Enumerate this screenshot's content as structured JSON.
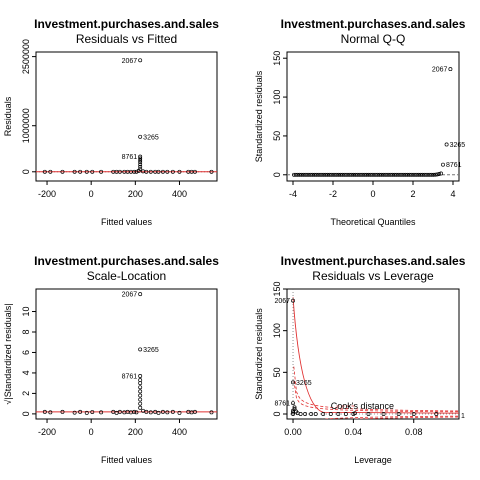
{
  "chart_data": [
    {
      "type": "scatter",
      "title": "Investment.purchases.and.sales",
      "subtitle": "Residuals vs Fitted",
      "xlabel": "Fitted values",
      "ylabel": "Residuals",
      "xlim": [
        -250,
        570
      ],
      "ylim": [
        -200000,
        2600000
      ],
      "xticks": [
        -200,
        0,
        200,
        400
      ],
      "yticks": [
        0,
        1000000,
        2500000
      ],
      "ytick_labels": [
        "0",
        "1000000",
        "2500000"
      ],
      "points": [
        {
          "x": -210,
          "y": 0
        },
        {
          "x": -185,
          "y": 0
        },
        {
          "x": -130,
          "y": 0
        },
        {
          "x": -75,
          "y": 0
        },
        {
          "x": -50,
          "y": 0
        },
        {
          "x": -20,
          "y": 0
        },
        {
          "x": 5,
          "y": 0
        },
        {
          "x": 45,
          "y": 0
        },
        {
          "x": 100,
          "y": 0
        },
        {
          "x": 115,
          "y": 0
        },
        {
          "x": 130,
          "y": 0
        },
        {
          "x": 150,
          "y": 0
        },
        {
          "x": 165,
          "y": 0
        },
        {
          "x": 180,
          "y": 0
        },
        {
          "x": 195,
          "y": 0
        },
        {
          "x": 205,
          "y": 0
        },
        {
          "x": 215,
          "y": 20000
        },
        {
          "x": 222,
          "y": 60000
        },
        {
          "x": 222,
          "y": 110000
        },
        {
          "x": 222,
          "y": 160000
        },
        {
          "x": 222,
          "y": 210000
        },
        {
          "x": 222,
          "y": 250000
        },
        {
          "x": 222,
          "y": 290000
        },
        {
          "x": 235,
          "y": 10000
        },
        {
          "x": 250,
          "y": 0
        },
        {
          "x": 270,
          "y": 0
        },
        {
          "x": 290,
          "y": 0
        },
        {
          "x": 305,
          "y": 0
        },
        {
          "x": 325,
          "y": 0
        },
        {
          "x": 345,
          "y": 0
        },
        {
          "x": 370,
          "y": 0
        },
        {
          "x": 400,
          "y": 0
        },
        {
          "x": 440,
          "y": 0
        },
        {
          "x": 455,
          "y": 0
        },
        {
          "x": 470,
          "y": 0
        },
        {
          "x": 545,
          "y": 0
        },
        {
          "x": 222,
          "y": 2420000
        },
        {
          "x": 222,
          "y": 760000
        },
        {
          "x": 222,
          "y": 330000
        }
      ],
      "labeled_points": [
        {
          "x": 222,
          "y": 2420000,
          "label": "2067",
          "side": "left"
        },
        {
          "x": 222,
          "y": 760000,
          "label": "3265",
          "side": "right"
        },
        {
          "x": 222,
          "y": 330000,
          "label": "8761",
          "side": "left"
        }
      ],
      "reference_line": {
        "y": 0,
        "style": "dotted"
      },
      "smooth_line": [
        {
          "x": -250,
          "y": 0
        },
        {
          "x": 570,
          "y": 0
        }
      ]
    },
    {
      "type": "scatter",
      "title": "Investment.purchases.and.sales",
      "subtitle": "Normal Q-Q",
      "xlabel": "Theoretical Quantiles",
      "ylabel": "Standardized residuals",
      "xlim": [
        -4.3,
        4.3
      ],
      "ylim": [
        -8,
        158
      ],
      "xticks": [
        -4,
        -2,
        0,
        2,
        4
      ],
      "yticks": [
        0,
        50,
        100,
        150
      ],
      "ytick_labels": [
        "0",
        "50",
        "100",
        "150"
      ],
      "qq_line": [
        {
          "x": -4.3,
          "y": 0
        },
        {
          "x": 4.3,
          "y": 0
        }
      ],
      "labeled_points": [
        {
          "x": 3.87,
          "y": 136,
          "label": "2067",
          "side": "left"
        },
        {
          "x": 3.68,
          "y": 39,
          "label": "3265",
          "side": "right"
        },
        {
          "x": 3.5,
          "y": 13,
          "label": "8761",
          "side": "right"
        }
      ]
    },
    {
      "type": "scatter",
      "title": "Investment.purchases.and.sales",
      "subtitle": "Scale-Location",
      "xlabel": "Fitted values",
      "ylabel": "√|Standardized residuals|",
      "xlim": [
        -250,
        570
      ],
      "ylim": [
        -0.5,
        12.2
      ],
      "xticks": [
        -200,
        0,
        200,
        400
      ],
      "yticks": [
        0,
        2,
        4,
        6,
        8,
        10
      ],
      "ytick_labels": [
        "0",
        "2",
        "4",
        "6",
        "8",
        "10"
      ],
      "points": [
        {
          "x": -210,
          "y": 0.2
        },
        {
          "x": -185,
          "y": 0.15
        },
        {
          "x": -130,
          "y": 0.2
        },
        {
          "x": -75,
          "y": 0.12
        },
        {
          "x": -50,
          "y": 0.2
        },
        {
          "x": -20,
          "y": 0.1
        },
        {
          "x": 5,
          "y": 0.18
        },
        {
          "x": 45,
          "y": 0.15
        },
        {
          "x": 100,
          "y": 0.2
        },
        {
          "x": 115,
          "y": 0.1
        },
        {
          "x": 130,
          "y": 0.2
        },
        {
          "x": 150,
          "y": 0.15
        },
        {
          "x": 165,
          "y": 0.2
        },
        {
          "x": 180,
          "y": 0.15
        },
        {
          "x": 195,
          "y": 0.2
        },
        {
          "x": 205,
          "y": 0.15
        },
        {
          "x": 222,
          "y": 0.6
        },
        {
          "x": 222,
          "y": 1.0
        },
        {
          "x": 222,
          "y": 1.4
        },
        {
          "x": 222,
          "y": 1.8
        },
        {
          "x": 222,
          "y": 2.2
        },
        {
          "x": 222,
          "y": 2.6
        },
        {
          "x": 222,
          "y": 3.0
        },
        {
          "x": 222,
          "y": 3.3
        },
        {
          "x": 235,
          "y": 0.3
        },
        {
          "x": 250,
          "y": 0.2
        },
        {
          "x": 270,
          "y": 0.15
        },
        {
          "x": 290,
          "y": 0.2
        },
        {
          "x": 305,
          "y": 0.1
        },
        {
          "x": 325,
          "y": 0.2
        },
        {
          "x": 345,
          "y": 0.15
        },
        {
          "x": 370,
          "y": 0.2
        },
        {
          "x": 400,
          "y": 0.1
        },
        {
          "x": 440,
          "y": 0.2
        },
        {
          "x": 455,
          "y": 0.15
        },
        {
          "x": 470,
          "y": 0.2
        },
        {
          "x": 545,
          "y": 0.15
        },
        {
          "x": 222,
          "y": 11.7
        },
        {
          "x": 222,
          "y": 6.3
        },
        {
          "x": 222,
          "y": 3.7
        }
      ],
      "labeled_points": [
        {
          "x": 222,
          "y": 11.7,
          "label": "2067",
          "side": "left"
        },
        {
          "x": 222,
          "y": 6.3,
          "label": "3265",
          "side": "right"
        },
        {
          "x": 222,
          "y": 3.7,
          "label": "8761",
          "side": "left"
        }
      ],
      "smooth_line": [
        {
          "x": -250,
          "y": 0.2
        },
        {
          "x": 570,
          "y": 0.2
        }
      ]
    },
    {
      "type": "scatter",
      "title": "Investment.purchases.and.sales",
      "subtitle": "Residuals vs Leverage",
      "xlabel": "Leverage",
      "ylabel": "Standardized residuals",
      "xlim": [
        -0.004,
        0.11
      ],
      "ylim": [
        -6,
        150
      ],
      "xticks": [
        0.0,
        0.04,
        0.08
      ],
      "xtick_labels": [
        "0.00",
        "0.04",
        "0.08"
      ],
      "yticks": [
        0,
        50,
        100,
        150
      ],
      "ytick_labels": [
        "0",
        "50",
        "100",
        "150"
      ],
      "points": [
        {
          "x": 0.0,
          "y": 0
        },
        {
          "x": 0.0,
          "y": 2
        },
        {
          "x": 0.0,
          "y": 4
        },
        {
          "x": 0.001,
          "y": 6
        },
        {
          "x": 0.001,
          "y": 8
        },
        {
          "x": 0.002,
          "y": 3
        },
        {
          "x": 0.003,
          "y": 1
        },
        {
          "x": 0.005,
          "y": 0
        },
        {
          "x": 0.008,
          "y": 0
        },
        {
          "x": 0.012,
          "y": 0
        },
        {
          "x": 0.015,
          "y": 0
        },
        {
          "x": 0.02,
          "y": 0
        },
        {
          "x": 0.025,
          "y": 0
        },
        {
          "x": 0.03,
          "y": 0
        },
        {
          "x": 0.035,
          "y": 0
        },
        {
          "x": 0.04,
          "y": 0
        },
        {
          "x": 0.041,
          "y": 1
        },
        {
          "x": 0.05,
          "y": 0
        },
        {
          "x": 0.06,
          "y": 0
        },
        {
          "x": 0.07,
          "y": 0
        },
        {
          "x": 0.08,
          "y": 0
        },
        {
          "x": 0.095,
          "y": 0
        },
        {
          "x": 0.0,
          "y": 136
        },
        {
          "x": 0.0,
          "y": 38
        },
        {
          "x": 0.0,
          "y": 13
        }
      ],
      "labeled_points": [
        {
          "x": 0.0,
          "y": 136,
          "label": "2067",
          "side": "left"
        },
        {
          "x": 0.0,
          "y": 38,
          "label": "3265",
          "side": "right"
        },
        {
          "x": 0.0,
          "y": 13,
          "label": "8761",
          "side": "left"
        }
      ],
      "legend": {
        "text": "Cook's distance",
        "placement": "bottom-center"
      },
      "cook_label": "1",
      "cook_levels": [
        0.5,
        1
      ]
    }
  ]
}
